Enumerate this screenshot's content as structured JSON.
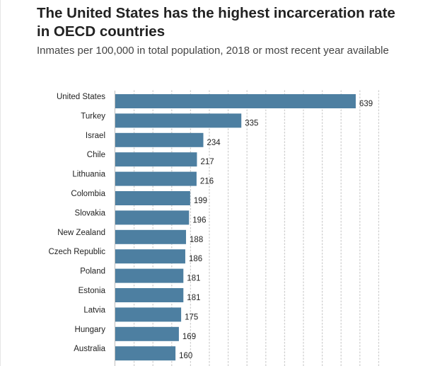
{
  "chart_data": {
    "type": "bar",
    "orientation": "horizontal",
    "title": "The United States has the highest incarceration rate in OECD countries",
    "subtitle": "Inmates per 100,000 in total population, 2018 or most recent year available",
    "xlabel": "",
    "ylabel": "",
    "xlim": [
      0,
      700
    ],
    "grid": true,
    "bar_color": "#4d7fa1",
    "categories": [
      "United States",
      "Turkey",
      "Israel",
      "Chile",
      "Lithuania",
      "Colombia",
      "Slovakia",
      "New Zealand",
      "Czech Republic",
      "Poland",
      "Estonia",
      "Latvia",
      "Hungary",
      "Australia"
    ],
    "values": [
      639,
      335,
      234,
      217,
      216,
      199,
      196,
      188,
      186,
      181,
      181,
      175,
      169,
      160
    ],
    "data_labels": [
      "639",
      "335",
      "234",
      "217",
      "216",
      "199",
      "196",
      "188",
      "186",
      "181",
      "181",
      "175",
      "169",
      "160"
    ]
  }
}
